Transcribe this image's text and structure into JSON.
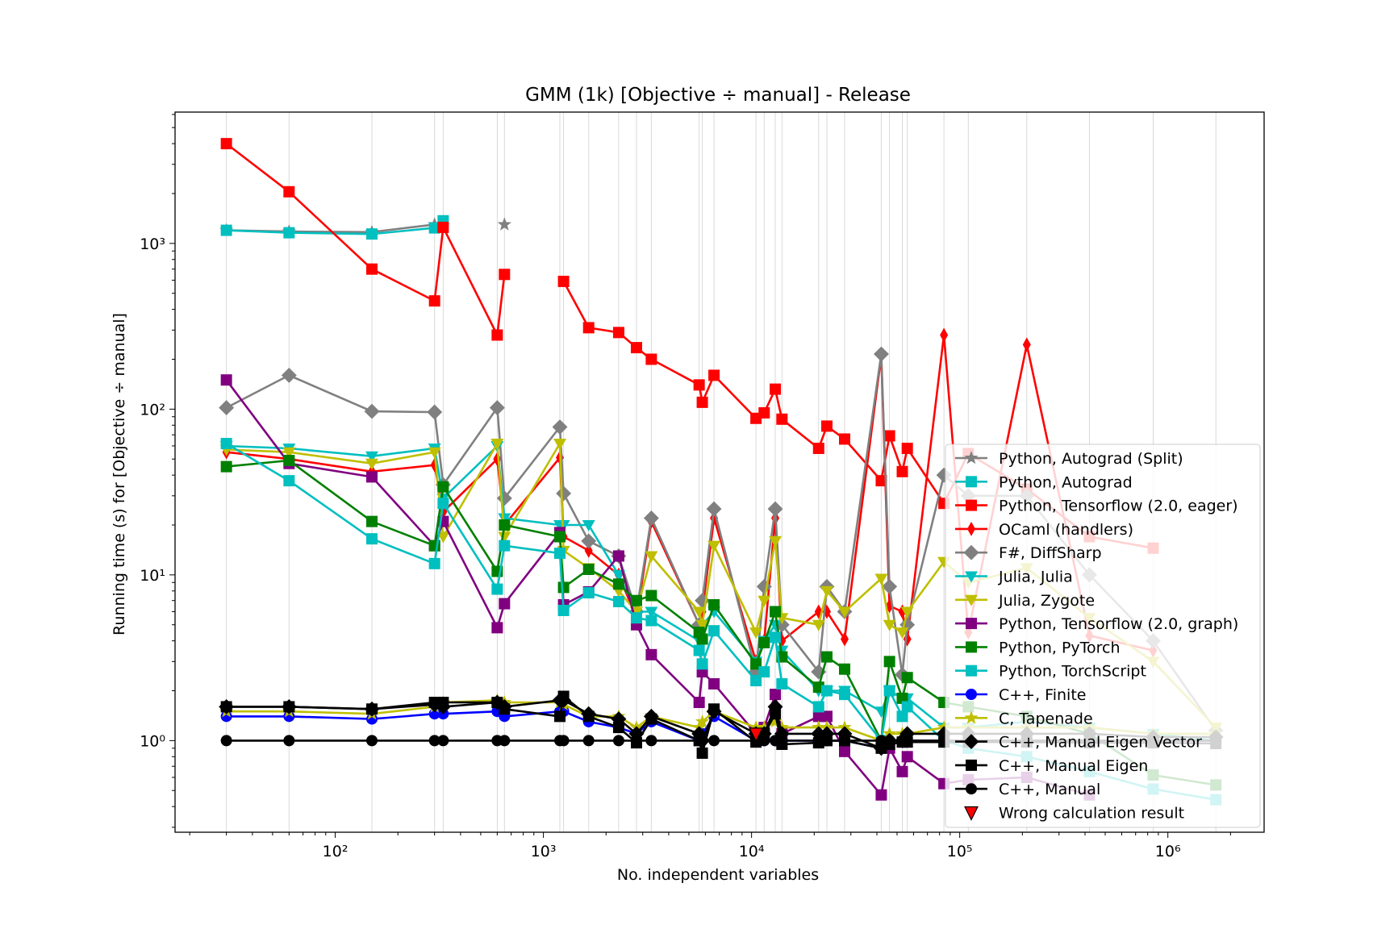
{
  "chart_data": {
    "type": "line",
    "title": "GMM (1k) [Objective ÷ manual] - Release",
    "xlabel": "No. independent variables",
    "ylabel": "Running time (s) for [Objective ÷ manual]",
    "xscale": "log",
    "yscale": "log",
    "xlim": [
      17,
      2900000
    ],
    "ylim": [
      0.28,
      6200
    ],
    "grid": "vertical lines at data x positions",
    "legend_position": "right",
    "x_tick_labels": [
      {
        "value": 100,
        "label": "10²"
      },
      {
        "value": 1000,
        "label": "10³"
      },
      {
        "value": 10000,
        "label": "10⁴"
      },
      {
        "value": 100000,
        "label": "10⁵"
      },
      {
        "value": 1000000,
        "label": "10⁶"
      }
    ],
    "y_tick_labels": [
      {
        "value": 1,
        "label": "10⁰"
      },
      {
        "value": 10,
        "label": "10¹"
      },
      {
        "value": 100,
        "label": "10²"
      },
      {
        "value": 1000,
        "label": "10³"
      }
    ],
    "x": [
      30,
      60,
      150,
      300,
      330,
      600,
      650,
      1200,
      1250,
      1650,
      2300,
      2800,
      3300,
      5600,
      5800,
      6600,
      10500,
      11500,
      13000,
      14000,
      21000,
      23000,
      28000,
      42000,
      46000,
      53000,
      56000,
      84000,
      110000,
      210000,
      420000,
      850000,
      1700000
    ],
    "series": [
      {
        "name": "Python, Autograd (Split)",
        "color": "#808080",
        "marker": "star",
        "values": [
          1200,
          1180,
          1170,
          1300,
          null,
          null,
          1300,
          null,
          null,
          null,
          null,
          null,
          null,
          null,
          null,
          null,
          null,
          null,
          null,
          null,
          null,
          null,
          null,
          null,
          null,
          null,
          null,
          null,
          null,
          null,
          null,
          null,
          null
        ]
      },
      {
        "name": "Python, Autograd",
        "color": "#00bfbf",
        "marker": "square",
        "values": [
          1200,
          1160,
          1140,
          1240,
          1370,
          null,
          null,
          null,
          null,
          null,
          null,
          null,
          null,
          null,
          null,
          null,
          null,
          null,
          null,
          null,
          null,
          null,
          null,
          null,
          null,
          null,
          null,
          null,
          null,
          null,
          null,
          null,
          null
        ]
      },
      {
        "name": "Python, Tensorflow (2.0, eager)",
        "color": "#ff0000",
        "marker": "square",
        "values": [
          4000,
          2050,
          700,
          450,
          1250,
          280,
          650,
          null,
          590,
          310,
          290,
          235,
          200,
          140,
          110,
          160,
          88,
          95,
          132,
          87,
          58,
          79,
          66,
          37,
          69,
          42,
          58,
          27,
          54,
          33,
          17,
          14.5,
          null
        ]
      },
      {
        "name": "OCaml (handlers)",
        "color": "#ff0000",
        "marker": "thin_diamond",
        "values": [
          55,
          50,
          42,
          46,
          24,
          50,
          20,
          51,
          17,
          14,
          10,
          5.5,
          21,
          5,
          6,
          22,
          3,
          4,
          22,
          4,
          6,
          6,
          4.1,
          210,
          6.5,
          6,
          4.1,
          280,
          4.5,
          245,
          4.3,
          3.5,
          null
        ]
      },
      {
        "name": "F#, DiffSharp",
        "color": "#808080",
        "marker": "diamond",
        "values": [
          102,
          160,
          97,
          96,
          35,
          102,
          29,
          78,
          31,
          16,
          13,
          6,
          22,
          5,
          7,
          25,
          2.6,
          8.5,
          25,
          5,
          2.6,
          8.5,
          6,
          215,
          8.5,
          2.5,
          5,
          40,
          30,
          30,
          10,
          4,
          1.15
        ]
      },
      {
        "name": "Julia, Julia",
        "color": "#00bfbf",
        "marker": "triangle_down",
        "values": [
          60,
          58,
          52,
          58,
          29,
          60,
          22,
          20,
          20,
          20,
          10,
          6,
          6,
          4,
          5,
          6,
          3,
          4,
          5,
          3.5,
          2,
          2,
          2,
          1.5,
          2,
          1.8,
          1.8,
          1.2,
          1.2,
          1.3,
          1.2,
          1.1,
          1.0
        ]
      },
      {
        "name": "Julia, Zygote",
        "color": "#bfbf00",
        "marker": "triangle_down",
        "values": [
          57,
          55,
          47,
          55,
          17,
          62,
          17,
          62,
          14,
          11,
          8,
          6,
          13,
          6,
          5,
          15,
          4.5,
          7,
          16,
          5.5,
          5,
          8,
          6,
          9.5,
          5,
          4.5,
          6,
          12,
          9,
          11,
          5.5,
          3,
          1.2
        ]
      },
      {
        "name": "Python, Tensorflow (2.0, graph)",
        "color": "#800080",
        "marker": "square",
        "values": [
          150,
          47,
          39,
          15,
          21,
          4.8,
          6.7,
          18,
          6.6,
          7.9,
          13,
          5.0,
          3.3,
          1.7,
          2.6,
          2.2,
          1.1,
          1.2,
          1.9,
          1.1,
          1.4,
          1.4,
          0.86,
          0.47,
          0.9,
          0.65,
          0.8,
          0.55,
          0.58,
          0.6,
          0.47,
          null,
          null
        ]
      },
      {
        "name": "Python, PyTorch",
        "color": "#008000",
        "marker": "square",
        "values": [
          45,
          49,
          21,
          15,
          34,
          10.5,
          20,
          17,
          8.4,
          10.8,
          8.8,
          7.0,
          7.5,
          4.5,
          4.1,
          6.6,
          2.9,
          3.9,
          6.0,
          3.2,
          2.1,
          3.2,
          2.7,
          1.0,
          3.0,
          1.8,
          2.4,
          1.7,
          1.6,
          1.4,
          1.1,
          0.62,
          0.54
        ]
      },
      {
        "name": "Python, TorchScript",
        "color": "#00bfbf",
        "marker": "square",
        "values": [
          62,
          37,
          16.5,
          11.7,
          27,
          8.2,
          15,
          13.5,
          6.1,
          7.8,
          6.9,
          5.5,
          5.3,
          3.5,
          2.9,
          4.6,
          2.3,
          2.6,
          4.2,
          2.2,
          1.6,
          2.0,
          1.9,
          1.0,
          2.0,
          1.4,
          1.6,
          1.0,
          0.9,
          0.8,
          0.65,
          0.51,
          0.44
        ]
      },
      {
        "name": "C++, Finite",
        "color": "#0000ff",
        "marker": "circle",
        "values": [
          1.4,
          1.4,
          1.35,
          1.45,
          1.45,
          1.5,
          1.4,
          1.5,
          1.5,
          1.3,
          1.2,
          1.1,
          1.3,
          1.0,
          1.1,
          1.4,
          1.0,
          1.0,
          1.0,
          1.0,
          1.0,
          1.0,
          1.0,
          0.9,
          1.0,
          1.0,
          1.0,
          1.0,
          1.0,
          1.0,
          1.0,
          1.0,
          1.0
        ]
      },
      {
        "name": "C, Tapenade",
        "color": "#bfbf00",
        "marker": "star",
        "values": [
          1.5,
          1.5,
          1.45,
          1.6,
          1.7,
          1.75,
          1.7,
          1.7,
          1.65,
          1.4,
          1.4,
          1.2,
          1.4,
          1.2,
          1.3,
          1.5,
          1.2,
          1.2,
          1.3,
          1.2,
          1.2,
          1.2,
          1.2,
          1.0,
          1.1,
          1.1,
          1.1,
          1.2,
          1.2,
          1.2,
          1.2,
          1.1,
          1.1
        ]
      },
      {
        "name": "C++, Manual Eigen Vector",
        "color": "#000000",
        "marker": "diamond",
        "values": [
          1.6,
          1.6,
          1.55,
          1.65,
          1.6,
          1.7,
          1.6,
          1.75,
          1.75,
          1.45,
          1.35,
          1.1,
          1.4,
          1.1,
          1.0,
          1.5,
          1.1,
          1.1,
          1.6,
          1.1,
          1.1,
          1.1,
          1.1,
          0.9,
          1.0,
          1.0,
          1.1,
          1.1,
          1.1,
          1.1,
          1.1,
          1.05,
          1.05
        ]
      },
      {
        "name": "C++, Manual Eigen",
        "color": "#000000",
        "marker": "square",
        "values": [
          1.6,
          1.6,
          1.55,
          1.7,
          1.7,
          1.7,
          1.55,
          1.4,
          1.85,
          1.4,
          1.2,
          0.97,
          1.35,
          1.0,
          0.84,
          1.55,
          0.98,
          1.1,
          1.45,
          0.95,
          0.97,
          1.0,
          1.0,
          0.9,
          0.95,
          0.98,
          0.98,
          0.98,
          0.98,
          0.98,
          0.97,
          0.97,
          0.96
        ]
      },
      {
        "name": "C++, Manual",
        "color": "#000000",
        "marker": "circle",
        "values": [
          1,
          1,
          1,
          1,
          1,
          1,
          1,
          1,
          1,
          1,
          1,
          1,
          1,
          1,
          1,
          1,
          1,
          1,
          1,
          1,
          1,
          1,
          1,
          1,
          1,
          1,
          1,
          1,
          1,
          1,
          1,
          1,
          1
        ]
      }
    ],
    "wrong_results": {
      "name": "Wrong calculation result",
      "color": "#ff0000",
      "marker": "triangle_down",
      "points": [
        {
          "x": 10500,
          "y": 1.1
        }
      ]
    }
  }
}
